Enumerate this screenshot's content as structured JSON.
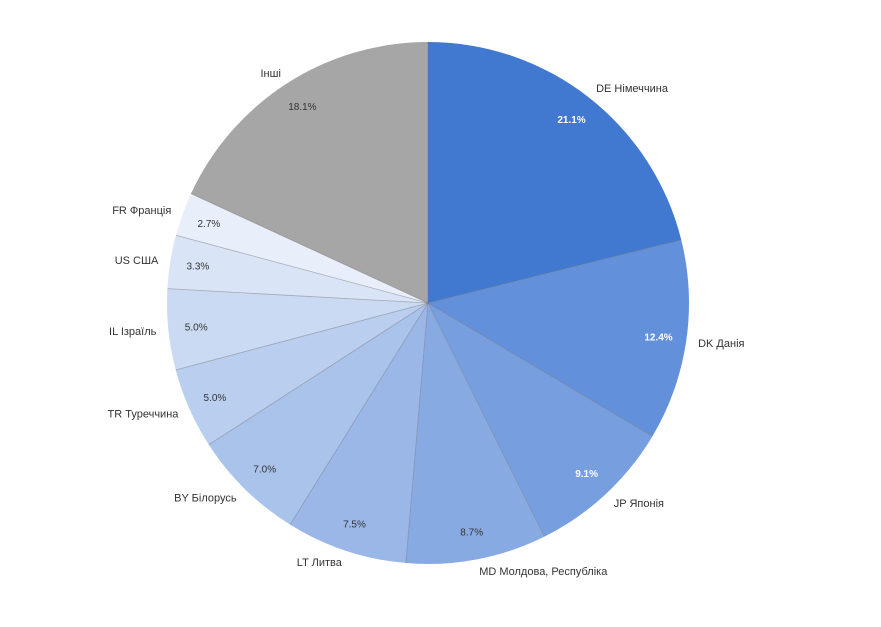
{
  "chart_data": {
    "type": "pie",
    "title": "",
    "start_angle_deg": 0,
    "direction": "clockwise",
    "legend": "none",
    "slices": [
      {
        "label": "DE Німеччина",
        "value": 21.1,
        "value_label": "21.1%",
        "color": "#4178d0"
      },
      {
        "label": "DK Данія",
        "value": 12.4,
        "value_label": "12.4%",
        "color": "#6290da"
      },
      {
        "label": "JP Японія",
        "value": 9.1,
        "value_label": "9.1%",
        "color": "#779fdf"
      },
      {
        "label": "MD Молдова, Республіка",
        "value": 8.7,
        "value_label": "8.7%",
        "color": "#88aae3"
      },
      {
        "label": "LT Литва",
        "value": 7.5,
        "value_label": "7.5%",
        "color": "#9ab7e7"
      },
      {
        "label": "BY Білорусь",
        "value": 7.0,
        "value_label": "7.0%",
        "color": "#aac3eb"
      },
      {
        "label": "TR Туреччина",
        "value": 5.0,
        "value_label": "5.0%",
        "color": "#bacfef"
      },
      {
        "label": "IL Ізраїль",
        "value": 5.0,
        "value_label": "5.0%",
        "color": "#c9daf2"
      },
      {
        "label": "US США",
        "value": 3.3,
        "value_label": "3.3%",
        "color": "#d9e4f6"
      },
      {
        "label": "FR Франція",
        "value": 2.7,
        "value_label": "2.7%",
        "color": "#e9effa"
      },
      {
        "label": "Інші",
        "value": 18.1,
        "value_label": "18.1%",
        "color": "#a6a6a6"
      }
    ]
  }
}
